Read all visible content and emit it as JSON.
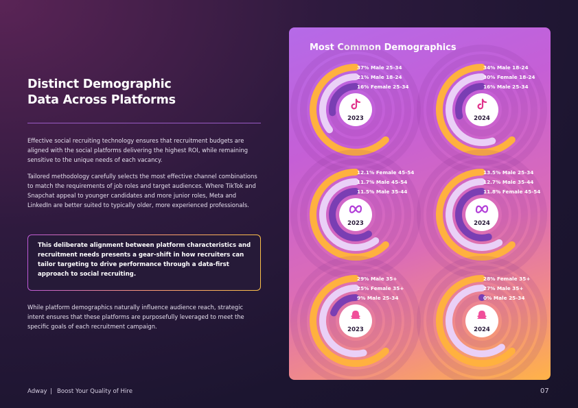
{
  "left": {
    "title": [
      "Distinct Demographic",
      "Data Across Platforms"
    ],
    "paragraphs": [
      "Effective social recruiting technology ensures that recruitment budgets are aligned with the social platforms delivering the highest ROI, while remaining sensitive to the unique needs of each vacancy.",
      "Tailored methodology carefully selects the most effective channel combinations to match the requirements of job roles and target audiences. Where TikTok and Snapchat appeal to younger candidates and more junior roles, Meta and LinkedIn are better suited to typically older, more experienced professionals."
    ],
    "callout": "This deliberate alignment between platform characteristics and recruitment needs presents a gear-shift in how recruiters can tailor targeting to drive performance through a data-first approach to social recruiting.",
    "closing": "While platform demographics naturally influence audience reach, strategic intent ensures that these platforms are purposefully leveraged to meet the specific goals of each recruitment campaign."
  },
  "footer": {
    "brand": "Adway",
    "tagline": "Boost Your Quality of Hire",
    "page_number": "07"
  },
  "panel": {
    "title": "Most Common Demographics",
    "charts": [
      {
        "year": "2023",
        "rings": [
          {
            "value": 37,
            "label": "37% Male 25-34"
          },
          {
            "value": 21,
            "label": "21% Male 18-24"
          },
          {
            "value": 16,
            "label": "16% Female 25-34"
          }
        ]
      },
      {
        "year": "2024",
        "rings": [
          {
            "value": 34,
            "label": "34% Male 18-24"
          },
          {
            "value": 30,
            "label": "30% Female 18-24"
          },
          {
            "value": 16,
            "label": "16% Male 25-34"
          }
        ]
      },
      {
        "year": "2023",
        "rings": [
          {
            "value": 12.1,
            "label": "12.1% Female 45-54"
          },
          {
            "value": 11.7,
            "label": "11.7% Male 45-54"
          },
          {
            "value": 11.5,
            "label": "11.5% Male 35-44"
          }
        ]
      },
      {
        "year": "2024",
        "rings": [
          {
            "value": 13.5,
            "label": "13.5% Male 25-34"
          },
          {
            "value": 12.7,
            "label": "12.7% Male 35-44"
          },
          {
            "value": 11.8,
            "label": "11.8% Female 45-54"
          }
        ]
      },
      {
        "year": "2023",
        "rings": [
          {
            "value": 29,
            "label": "29% Male 35+"
          },
          {
            "value": 25,
            "label": "25% Female 35+"
          },
          {
            "value": 9,
            "label": "9% Male 25-34"
          }
        ]
      },
      {
        "year": "2024",
        "rings": [
          {
            "value": 28,
            "label": "28% Female 35+"
          },
          {
            "value": 27,
            "label": "27% Male 35+"
          },
          {
            "value": 0,
            "label": "0% Male 25-34"
          }
        ]
      }
    ]
  }
}
